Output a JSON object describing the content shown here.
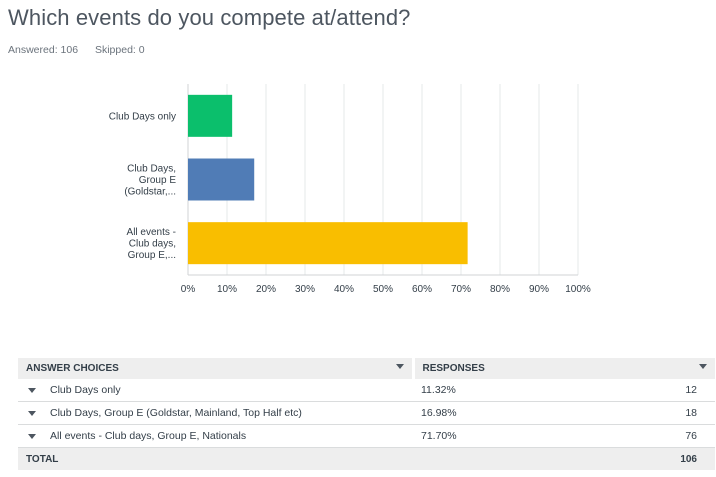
{
  "question": {
    "title": "Which events do you compete at/attend?",
    "answered": "Answered: 106",
    "skipped": "Skipped: 0"
  },
  "chart_data": {
    "type": "bar",
    "orientation": "horizontal",
    "categories": [
      "Club Days only",
      "Club Days, Group E (Goldstar,...",
      "All events - Club days, Group E,..."
    ],
    "category_label_lines": [
      [
        "Club Days only"
      ],
      [
        "Club Days,",
        "Group E",
        "(Goldstar,..."
      ],
      [
        "All events -",
        "Club days,",
        "Group E,..."
      ]
    ],
    "values": [
      11.32,
      16.98,
      71.7
    ],
    "colors": [
      "#0bbf6c",
      "#507cb6",
      "#f9be00"
    ],
    "xlim": [
      0,
      100
    ],
    "ticks": [
      "0%",
      "10%",
      "20%",
      "30%",
      "40%",
      "50%",
      "60%",
      "70%",
      "80%",
      "90%",
      "100%"
    ],
    "grid": true
  },
  "table": {
    "header_choice": "ANSWER CHOICES",
    "header_responses": "RESPONSES",
    "rows": [
      {
        "choice": "Club Days only",
        "percent": "11.32%",
        "count": "12"
      },
      {
        "choice": "Club Days, Group E (Goldstar, Mainland, Top Half etc)",
        "percent": "16.98%",
        "count": "18"
      },
      {
        "choice": "All events - Club days, Group E, Nationals",
        "percent": "71.70%",
        "count": "76"
      }
    ],
    "total_label": "TOTAL",
    "total_count": "106"
  },
  "icons": {
    "sort": "caret-down-icon",
    "expand": "caret-down-icon"
  }
}
